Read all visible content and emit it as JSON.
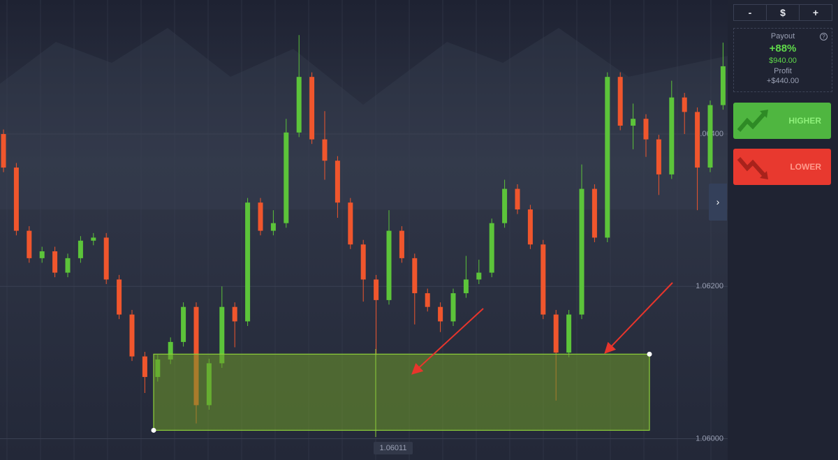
{
  "chart_data": {
    "type": "candlestick",
    "open": [
      1.064,
      1.06356,
      1.06273,
      1.06237,
      1.06246,
      1.06218,
      1.06237,
      1.0626,
      1.06264,
      1.06209,
      1.06163,
      1.06108,
      1.06081,
      1.06104,
      1.06127,
      1.06173,
      1.06044,
      1.06099,
      1.06173,
      1.06154,
      1.0631,
      1.06273,
      1.06283,
      1.06402,
      1.06475,
      1.06393,
      1.06365,
      1.0631,
      1.06255,
      1.06209,
      1.06182,
      1.06273,
      1.06237,
      1.06191,
      1.06173,
      1.06154,
      1.06191,
      1.06209,
      1.06218,
      1.06283,
      1.06328,
      1.06301,
      1.06255,
      1.06163,
      1.06113,
      1.06163,
      1.06328,
      1.06264,
      1.06475,
      1.06411,
      1.0642,
      1.06393,
      1.06347,
      1.06448,
      1.06429,
      1.06356,
      1.06438
    ],
    "high": [
      1.06406,
      1.06362,
      1.06279,
      1.06252,
      1.06252,
      1.06243,
      1.06266,
      1.0627,
      1.0627,
      1.06215,
      1.06169,
      1.06114,
      1.0611,
      1.06133,
      1.06179,
      1.06179,
      1.06105,
      1.062,
      1.06179,
      1.06316,
      1.06316,
      1.063,
      1.0642,
      1.0653,
      1.06481,
      1.0643,
      1.06371,
      1.06316,
      1.06261,
      1.06215,
      1.063,
      1.06279,
      1.06243,
      1.06197,
      1.06179,
      1.06197,
      1.0624,
      1.06235,
      1.06289,
      1.0634,
      1.06334,
      1.06307,
      1.06261,
      1.06169,
      1.06169,
      1.0636,
      1.06334,
      1.06481,
      1.06481,
      1.0644,
      1.06426,
      1.06399,
      1.0647,
      1.06454,
      1.06435,
      1.06444,
      1.0652
    ],
    "low": [
      1.0635,
      1.06267,
      1.06231,
      1.06231,
      1.06212,
      1.06212,
      1.06231,
      1.06254,
      1.06203,
      1.06157,
      1.06102,
      1.0606,
      1.06075,
      1.06098,
      1.06121,
      1.0602,
      1.06038,
      1.06093,
      1.0612,
      1.06148,
      1.06267,
      1.06267,
      1.06277,
      1.06396,
      1.06387,
      1.0634,
      1.0629,
      1.06249,
      1.0618,
      1.0611,
      1.06176,
      1.06231,
      1.0615,
      1.06167,
      1.0614,
      1.06148,
      1.06185,
      1.06203,
      1.06212,
      1.06277,
      1.06295,
      1.06249,
      1.06157,
      1.0605,
      1.06107,
      1.06157,
      1.06258,
      1.06258,
      1.06405,
      1.0638,
      1.0637,
      1.0632,
      1.06341,
      1.064,
      1.063,
      1.0635,
      1.06432
    ],
    "close": [
      1.06356,
      1.06273,
      1.06237,
      1.06246,
      1.06218,
      1.06237,
      1.0626,
      1.06264,
      1.06209,
      1.06163,
      1.06108,
      1.06081,
      1.06104,
      1.06127,
      1.06173,
      1.06044,
      1.06099,
      1.06173,
      1.06154,
      1.0631,
      1.06273,
      1.06283,
      1.06402,
      1.06475,
      1.06393,
      1.06365,
      1.0631,
      1.06255,
      1.06209,
      1.06182,
      1.06273,
      1.06237,
      1.06191,
      1.06173,
      1.06154,
      1.06191,
      1.06209,
      1.06218,
      1.06283,
      1.06328,
      1.06301,
      1.06255,
      1.06163,
      1.06113,
      1.06163,
      1.06328,
      1.06264,
      1.06475,
      1.06411,
      1.0642,
      1.06393,
      1.06347,
      1.06448,
      1.06429,
      1.06356,
      1.06438,
      1.06489
    ],
    "up_color": "#5cc43a",
    "down_color": "#f0562d",
    "ylim": [
      1.05972,
      1.06576
    ],
    "yticks": [
      {
        "value": 1.06,
        "label": "1.06000"
      },
      {
        "value": 1.062,
        "label": "1.06200"
      },
      {
        "value": 1.064,
        "label": "1.06400"
      }
    ],
    "grid": true,
    "crosshair": 1.06011,
    "zone_high": 1.06111
  },
  "sidebar": {
    "amount_buttons": [
      "-",
      "$",
      "+"
    ],
    "payout": {
      "label": "Payout",
      "percent": "+88%",
      "amount": "$940.00",
      "profit_label": "Profit",
      "profit": "+$440.00"
    },
    "higher": "HIGHER",
    "lower": "LOWER"
  }
}
